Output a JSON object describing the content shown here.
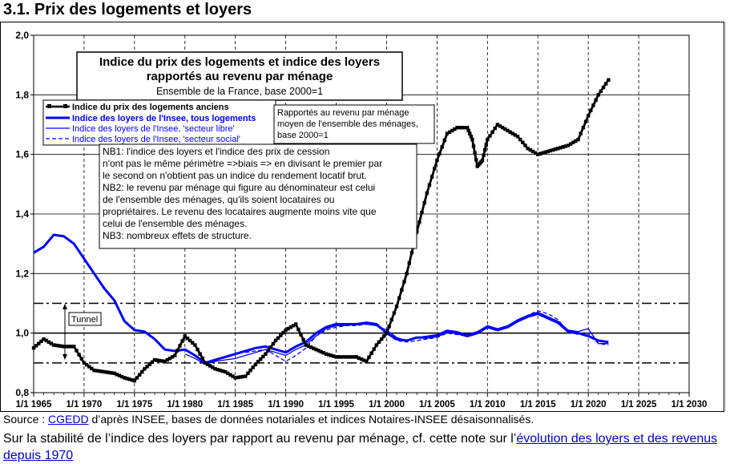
{
  "heading": "3.1. Prix des logements et loyers",
  "footer": {
    "source_prefix": "Source : ",
    "source_link": "CGEDD",
    "source_rest": " d’après INSEE, bases de données notariales et indices Notaires-INSEE désaisonnalisés.",
    "note_prefix": "Sur la stabilité de l’indice des loyers par rapport au revenu par ménage, cf. cette note sur l’",
    "note_link": "évolution des loyers et des revenus depuis 1970"
  },
  "chart_data": {
    "type": "line",
    "title": "Indice du prix des logements et indice des loyers rapportés au revenu par ménage",
    "subtitle": "Ensemble de la France, base 2000=1",
    "y_range": [
      0.8,
      2.0
    ],
    "y_ticks": [
      "0,8",
      "1,0",
      "1,2",
      "1,4",
      "1,6",
      "1,8",
      "2,0"
    ],
    "x_range": [
      1965,
      2030
    ],
    "x_ticks": [
      "1/1 1965",
      "1/1 1970",
      "1/1 1975",
      "1/1 1980",
      "1/1 1985",
      "1/1 1990",
      "1/1 1995",
      "1/1 2000",
      "1/1 2005",
      "1/1 2010",
      "1/1 2015",
      "1/1 2020",
      "1/1 2025",
      "1/1 2030"
    ],
    "grid": "vertical dashed, horizontal every 0.2",
    "reference_lines": [
      {
        "y": 1.0,
        "style": "solid"
      },
      {
        "y": 1.1,
        "style": "dash-dot"
      },
      {
        "y": 0.9,
        "style": "dash-dot"
      }
    ],
    "annotation_tunnel": "Tunnel",
    "legend": [
      "Indice du prix des logements anciens",
      "Indice des loyers de l'Insee, tous logements",
      "Indice des loyers de l'Insee, 'secteur libre'",
      "Indice des loyers de l'Insee, 'secteur social'"
    ],
    "legend_note": "Rapportés au revenu par ménage moyen de l'ensemble des ménages, base 2000=1",
    "nb_lines": [
      "NB1: l'indice des loyers et l'indice des prix de cession",
      "n'ont pas le même périmètre =>biais => en divisant le premier par",
      "le second on n'obtient pas un indice du rendement locatif brut.",
      "NB2: le revenu par ménage qui figure au dénominateur est celui",
      "de l'ensemble des ménages, qu'ils soient locataires ou",
      "propriétaires.  Le revenu des locataires augmente moins vite que",
      "celui de l'ensemble des ménages.",
      "NB3: nombreux effets de structure."
    ],
    "series": [
      {
        "name": "Indice du prix des logements anciens",
        "color": "#000000",
        "x": [
          1965,
          1966,
          1967,
          1968,
          1969,
          1970,
          1971,
          1972,
          1973,
          1974,
          1975,
          1976,
          1977,
          1978,
          1979,
          1980,
          1981,
          1982,
          1983,
          1984,
          1985,
          1986,
          1987,
          1988,
          1989,
          1990,
          1991,
          1992,
          1993,
          1994,
          1995,
          1996,
          1997,
          1998,
          1999,
          2000,
          2001,
          2002,
          2003,
          2004,
          2005,
          2006,
          2007,
          2008,
          2008.5,
          2009,
          2009.5,
          2010,
          2011,
          2012,
          2013,
          2014,
          2015,
          2016,
          2017,
          2018,
          2019,
          2020,
          2021,
          2022
        ],
        "values": [
          0.95,
          0.98,
          0.96,
          0.955,
          0.955,
          0.9,
          0.875,
          0.87,
          0.865,
          0.85,
          0.84,
          0.88,
          0.91,
          0.905,
          0.925,
          0.99,
          0.96,
          0.9,
          0.88,
          0.87,
          0.85,
          0.855,
          0.895,
          0.93,
          0.975,
          1.01,
          1.03,
          0.96,
          0.945,
          0.93,
          0.92,
          0.92,
          0.92,
          0.905,
          0.96,
          1.0,
          1.09,
          1.2,
          1.34,
          1.47,
          1.58,
          1.67,
          1.69,
          1.69,
          1.65,
          1.56,
          1.58,
          1.65,
          1.7,
          1.68,
          1.66,
          1.62,
          1.6,
          1.61,
          1.62,
          1.63,
          1.65,
          1.73,
          1.8,
          1.85
        ]
      },
      {
        "name": "Indice des loyers de l'Insee, tous logements",
        "color": "#0000ff",
        "x": [
          1965,
          1966,
          1967,
          1968,
          1969,
          1970,
          1971,
          1972,
          1973,
          1974,
          1975,
          1976,
          1977,
          1978,
          1979,
          1980,
          1981,
          1982,
          1983,
          1984,
          1985,
          1986,
          1987,
          1988,
          1989,
          1990,
          1991,
          1992,
          1993,
          1994,
          1995,
          1996,
          1997,
          1998,
          1999,
          2000,
          2001,
          2002,
          2003,
          2004,
          2005,
          2006,
          2007,
          2008,
          2009,
          2010,
          2011,
          2012,
          2013,
          2014,
          2015,
          2016,
          2017,
          2018,
          2019,
          2020,
          2021,
          2022
        ],
        "values": [
          1.27,
          1.29,
          1.33,
          1.325,
          1.3,
          1.25,
          1.2,
          1.15,
          1.11,
          1.04,
          1.01,
          1.005,
          0.98,
          0.945,
          0.94,
          0.945,
          0.925,
          0.9,
          0.91,
          0.92,
          0.93,
          0.94,
          0.95,
          0.955,
          0.945,
          0.935,
          0.955,
          0.97,
          1.0,
          1.02,
          1.03,
          1.03,
          1.03,
          1.035,
          1.03,
          1.0,
          0.98,
          0.975,
          0.985,
          0.985,
          0.99,
          1.005,
          1.0,
          0.99,
          1.0,
          1.02,
          1.01,
          1.02,
          1.04,
          1.055,
          1.065,
          1.05,
          1.035,
          1.005,
          1.0,
          0.99,
          0.975,
          0.97
        ]
      },
      {
        "name": "Indice des loyers de l'Insee, 'secteur libre'",
        "color": "#0000ff",
        "x": [
          1980,
          1981,
          1982,
          1983,
          1984,
          1985,
          1986,
          1987,
          1988,
          1989,
          1990,
          1991,
          1992,
          1993,
          1994,
          1995,
          1996,
          1997,
          1998,
          1999,
          2000,
          2001,
          2002,
          2003,
          2004,
          2005,
          2006,
          2007,
          2008,
          2009,
          2010,
          2011,
          2012,
          2013,
          2014,
          2015,
          2016,
          2017,
          2018,
          2019,
          2020,
          2021,
          2022
        ],
        "values": [
          0.93,
          0.915,
          0.895,
          0.905,
          0.91,
          0.915,
          0.925,
          0.935,
          0.945,
          0.935,
          0.925,
          0.945,
          0.96,
          0.99,
          1.015,
          1.025,
          1.025,
          1.03,
          1.03,
          1.025,
          1.01,
          0.985,
          0.975,
          0.985,
          0.99,
          0.995,
          1.01,
          1.005,
          0.995,
          1.005,
          1.025,
          1.015,
          1.025,
          1.045,
          1.06,
          1.07,
          1.055,
          1.04,
          1.01,
          1.005,
          1.015,
          0.965,
          0.965
        ]
      },
      {
        "name": "Indice des loyers de l'Insee, 'secteur social'",
        "color": "#0000ff",
        "x": [
          1986,
          1987,
          1988,
          1989,
          1990,
          1991,
          1992,
          1993,
          1994,
          1995,
          1996,
          1997,
          1998,
          1999,
          2000,
          2001,
          2002,
          2003,
          2004,
          2005,
          2006,
          2007,
          2008,
          2009,
          2010,
          2011,
          2012,
          2013,
          2014,
          2015,
          2016,
          2017,
          2018,
          2019,
          2020,
          2021,
          2022
        ],
        "values": [
          0.935,
          0.94,
          0.945,
          0.925,
          0.905,
          0.925,
          0.95,
          0.99,
          1.01,
          1.02,
          1.025,
          1.025,
          1.03,
          1.025,
          1.0,
          0.975,
          0.97,
          0.975,
          0.98,
          0.985,
          1.0,
          0.995,
          0.99,
          1.0,
          1.02,
          1.01,
          1.02,
          1.04,
          1.06,
          1.075,
          1.065,
          1.045,
          1.005,
          0.995,
          1.0,
          0.965,
          0.96
        ]
      }
    ]
  }
}
